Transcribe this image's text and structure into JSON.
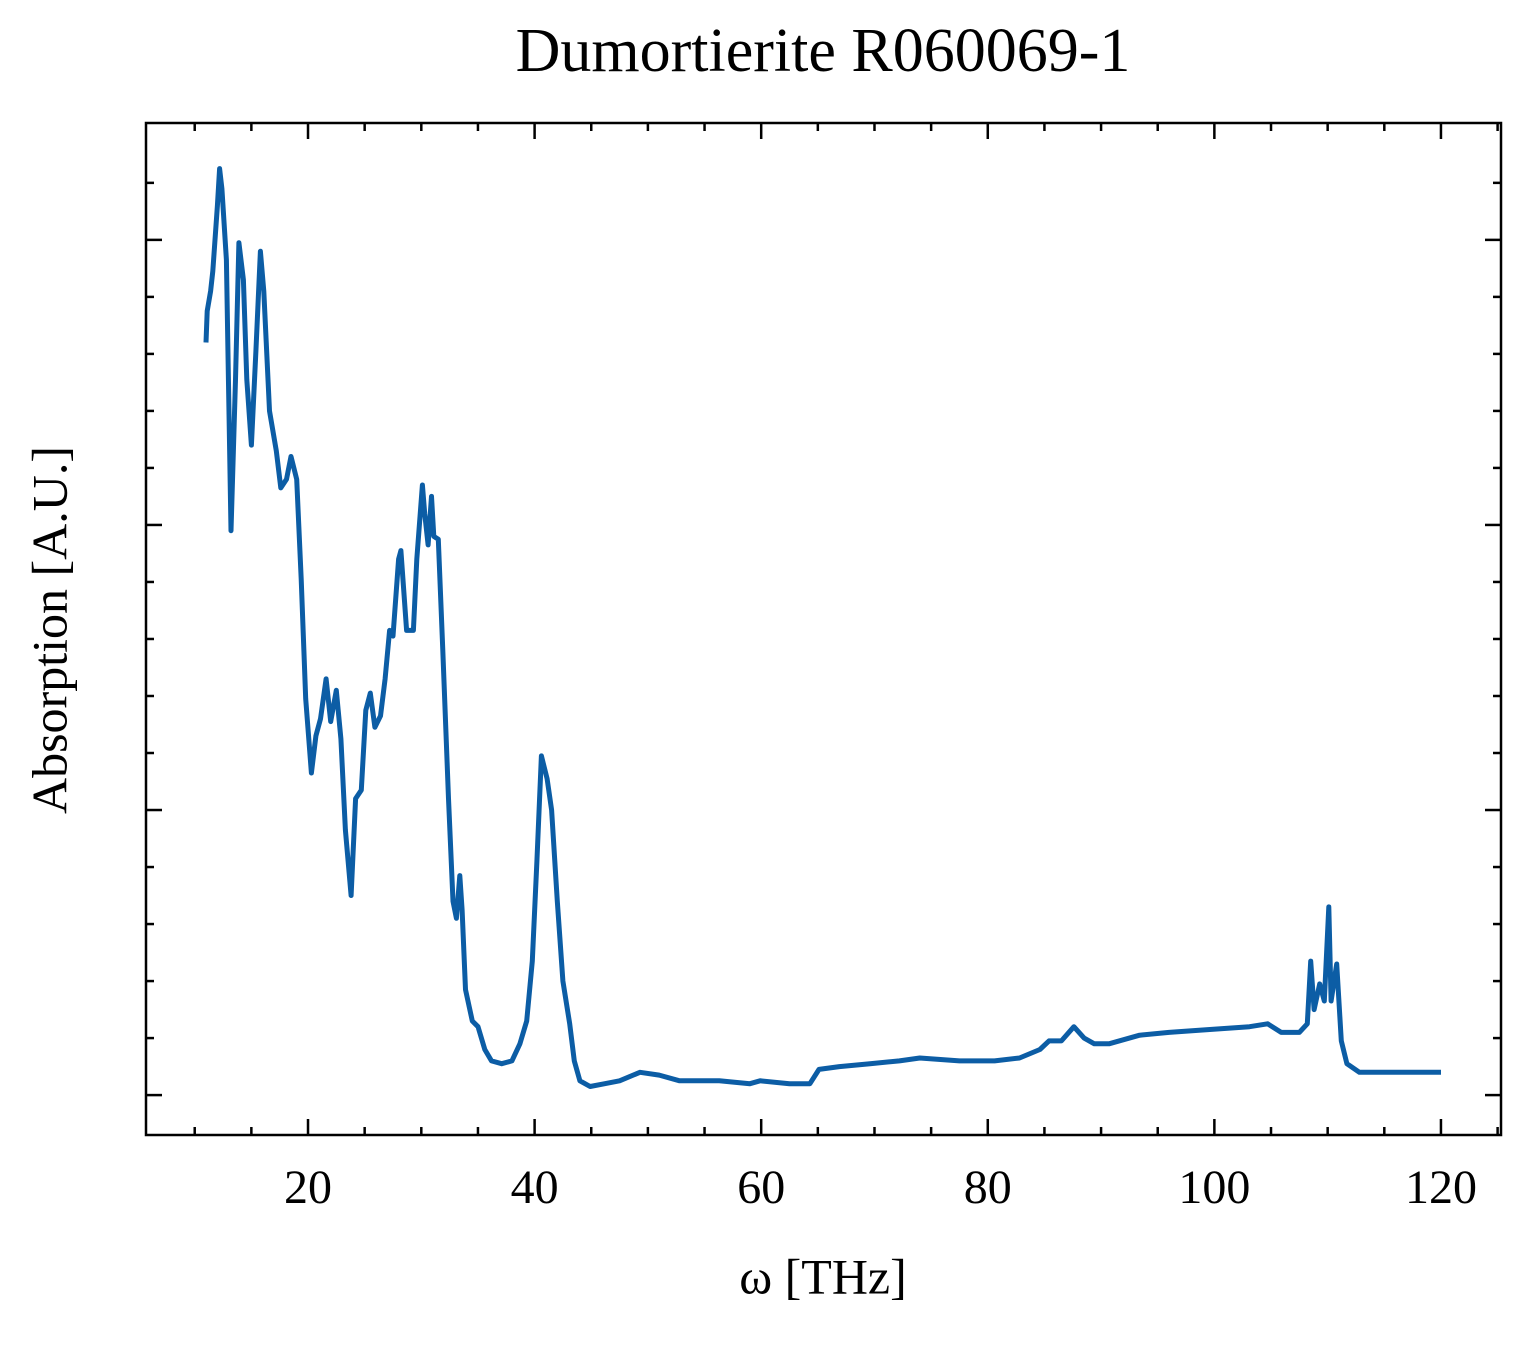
{
  "chart_data": {
    "type": "line",
    "title": "Dumortierite R060069-1",
    "xlabel": "ω [THz]",
    "ylabel": "Absorption [A.U.]",
    "xlim": [
      5.7,
      125.3
    ],
    "ylim": [
      -0.14,
      3.41
    ],
    "xticks": [
      20,
      40,
      60,
      80,
      100,
      120
    ],
    "xminorticks": [
      10,
      15,
      25,
      30,
      35,
      45,
      50,
      55,
      65,
      70,
      75,
      85,
      90,
      95,
      105,
      110,
      115,
      125
    ],
    "yticks": [
      0,
      1,
      2,
      3
    ],
    "yminorticks": [
      0.2,
      0.4,
      0.6,
      0.8,
      1.2,
      1.4,
      1.6,
      1.8,
      2.2,
      2.4,
      2.6,
      2.8,
      3.2
    ],
    "series": [
      {
        "name": "Dumortierite R060069-1",
        "color": "#0c5da5",
        "x": [
          11.0,
          11.1,
          11.4,
          11.6,
          12.0,
          12.2,
          12.4,
          12.8,
          13.2,
          13.6,
          13.9,
          14.3,
          14.6,
          15.0,
          15.4,
          15.8,
          16.1,
          16.6,
          17.2,
          17.6,
          18.1,
          18.5,
          19.0,
          19.4,
          19.8,
          20.3,
          20.7,
          21.1,
          21.6,
          22.0,
          22.5,
          22.9,
          23.3,
          23.8,
          24.2,
          24.7,
          25.1,
          25.5,
          25.9,
          26.4,
          26.8,
          27.2,
          27.5,
          28.0,
          28.2,
          28.7,
          29.3,
          29.6,
          30.1,
          30.3,
          30.6,
          30.9,
          31.1,
          31.5,
          31.9,
          32.4,
          32.8,
          33.1,
          33.4,
          33.6,
          33.9,
          34.5,
          35.0,
          35.6,
          36.2,
          37.1,
          38.0,
          38.7,
          39.3,
          39.8,
          40.2,
          40.6,
          41.1,
          41.5,
          42.0,
          42.5,
          43.1,
          43.5,
          44.0,
          44.9,
          46.2,
          47.5,
          49.3,
          51.0,
          52.8,
          56.3,
          59.0,
          59.9,
          62.5,
          64.3,
          65.1,
          66.9,
          69.6,
          72.2,
          74.0,
          77.5,
          80.6,
          82.8,
          84.6,
          85.4,
          86.5,
          87.6,
          88.5,
          89.4,
          90.7,
          93.4,
          96.0,
          99.6,
          103.1,
          104.7,
          105.9,
          107.5,
          108.2,
          108.5,
          108.8,
          109.3,
          109.7,
          110.1,
          110.3,
          110.8,
          111.2,
          111.7,
          112.8,
          114.6,
          117.2,
          120.0
        ],
        "values": [
          2.64,
          2.75,
          2.82,
          2.89,
          3.12,
          3.25,
          3.18,
          2.93,
          1.98,
          2.51,
          2.99,
          2.86,
          2.51,
          2.28,
          2.61,
          2.96,
          2.82,
          2.4,
          2.26,
          2.13,
          2.16,
          2.24,
          2.16,
          1.81,
          1.39,
          1.13,
          1.26,
          1.32,
          1.46,
          1.31,
          1.42,
          1.25,
          0.93,
          0.7,
          1.04,
          1.07,
          1.35,
          1.41,
          1.29,
          1.33,
          1.46,
          1.63,
          1.61,
          1.88,
          1.91,
          1.63,
          1.63,
          1.88,
          2.14,
          2.04,
          1.93,
          2.1,
          1.96,
          1.95,
          1.56,
          1.04,
          0.68,
          0.62,
          0.77,
          0.65,
          0.37,
          0.26,
          0.24,
          0.16,
          0.12,
          0.11,
          0.12,
          0.18,
          0.26,
          0.47,
          0.82,
          1.19,
          1.11,
          1.0,
          0.68,
          0.4,
          0.25,
          0.12,
          0.05,
          0.03,
          0.04,
          0.05,
          0.08,
          0.07,
          0.05,
          0.05,
          0.04,
          0.05,
          0.04,
          0.04,
          0.09,
          0.1,
          0.11,
          0.12,
          0.13,
          0.12,
          0.12,
          0.13,
          0.16,
          0.19,
          0.19,
          0.24,
          0.2,
          0.18,
          0.18,
          0.21,
          0.22,
          0.23,
          0.24,
          0.25,
          0.22,
          0.22,
          0.25,
          0.47,
          0.3,
          0.39,
          0.33,
          0.66,
          0.33,
          0.46,
          0.19,
          0.11,
          0.08,
          0.08,
          0.08,
          0.08
        ]
      }
    ]
  }
}
